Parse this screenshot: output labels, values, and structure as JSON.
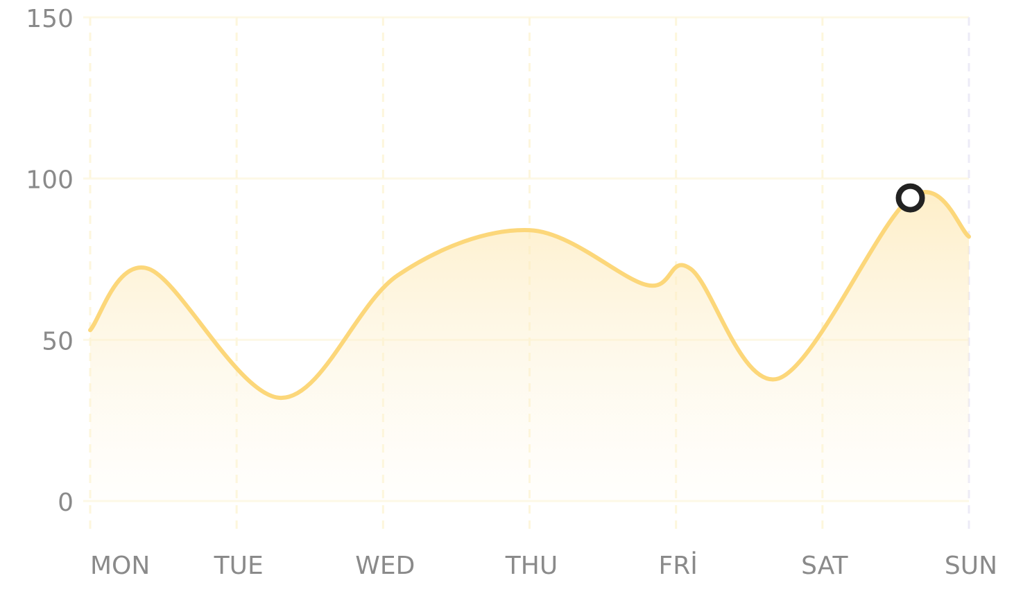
{
  "chart_data": {
    "type": "line",
    "x": [
      0,
      0.4,
      1.3,
      2.1,
      3,
      3.8,
      4.1,
      4.7,
      5.6,
      6
    ],
    "series": [
      {
        "color": "#fcd77a",
        "values": [
          53,
          72,
          32,
          70,
          84,
          67,
          72,
          38,
          94,
          82
        ]
      }
    ],
    "xlim": [
      0,
      6
    ],
    "xticks": [
      {
        "value": 0,
        "label": "MON"
      },
      {
        "value": 1,
        "label": "TUE"
      },
      {
        "value": 2,
        "label": "WED"
      },
      {
        "value": 3,
        "label": "THU"
      },
      {
        "value": 4,
        "label": "FRİ"
      },
      {
        "value": 5,
        "label": "SAT"
      },
      {
        "value": 6,
        "label": "SUN"
      }
    ],
    "ylim": [
      0,
      150
    ],
    "yticks": [
      0,
      50,
      100,
      150
    ],
    "grid": true,
    "highlight_index": 8
  }
}
